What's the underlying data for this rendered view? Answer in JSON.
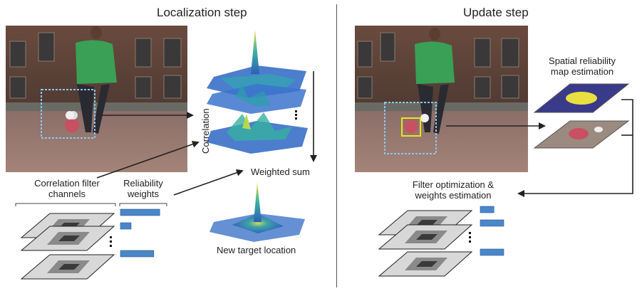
{
  "left_panel": {
    "title": "Localization step",
    "correlation_label": "Correlation",
    "weighted_sum_label": "Weighted sum",
    "new_target_label": "New target location",
    "filter_channels_label_line1": "Correlation filter",
    "filter_channels_label_line2": "channels",
    "reliability_label_line1": "Reliability",
    "reliability_label_line2": "weights",
    "reliability_weights": [
      0.92,
      0.25,
      0.78
    ]
  },
  "right_panel": {
    "title": "Update step",
    "spatial_label_line1": "Spatial reliability",
    "spatial_label_line2": "map estimation",
    "filter_opt_label_line1": "Filter optimization &",
    "filter_opt_label_line2": "weights estimation",
    "reliability_weights": [
      0.32,
      0.55,
      0.55
    ]
  },
  "colors": {
    "weight_bar": "#4a86c8",
    "bbox_dashed": "#8ec5e8",
    "target_box": "#f0e020",
    "reliability_map_bg": "#3a3a8a",
    "reliability_map_blob": "#e8e040"
  }
}
